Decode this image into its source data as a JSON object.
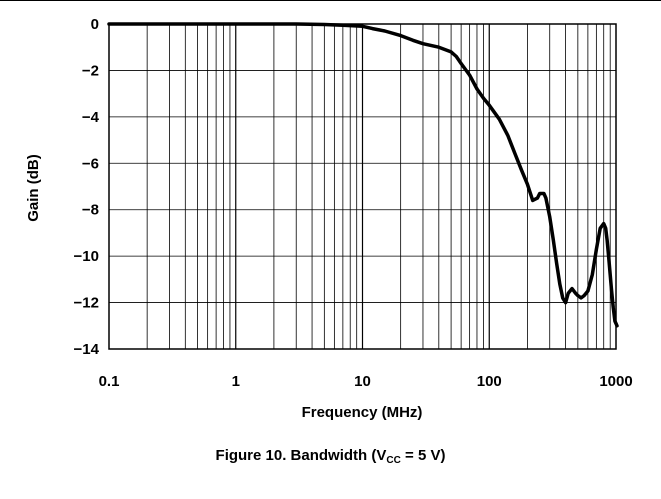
{
  "chart_data": {
    "type": "line",
    "x_scale": "log",
    "xlim": [
      0.1,
      1000
    ],
    "ylim": [
      -14,
      0
    ],
    "xlabel": "Frequency (MHz)",
    "ylabel": "Gain (dB)",
    "x_tick_labels": [
      "0.1",
      "1",
      "10",
      "100",
      "1000"
    ],
    "y_ticks": [
      0,
      -2,
      -4,
      -6,
      -8,
      -10,
      -12,
      -14
    ],
    "y_tick_labels": [
      "0",
      "−2",
      "−4",
      "−6",
      "−8",
      "−10",
      "−12",
      "−14"
    ],
    "grid": true,
    "line_color": "#000000",
    "series": [
      {
        "x": [
          0.1,
          0.5,
          1,
          2,
          3,
          5,
          7,
          10,
          12,
          15,
          20,
          25,
          30,
          40,
          50,
          55,
          60,
          70,
          80,
          90,
          100,
          120,
          140,
          160,
          180,
          200,
          220,
          240,
          250,
          270,
          280,
          300,
          320,
          340,
          360,
          380,
          400,
          420,
          450,
          480,
          500,
          530,
          560,
          600,
          650,
          700,
          750,
          800,
          830,
          850,
          880,
          900,
          920,
          950,
          980,
          1000,
          1050
        ],
        "y": [
          0,
          0,
          0,
          0,
          0,
          -0.02,
          -0.05,
          -0.1,
          -0.2,
          -0.3,
          -0.5,
          -0.7,
          -0.85,
          -1.0,
          -1.2,
          -1.4,
          -1.7,
          -2.2,
          -2.8,
          -3.2,
          -3.5,
          -4.1,
          -4.8,
          -5.6,
          -6.3,
          -6.9,
          -7.6,
          -7.5,
          -7.3,
          -7.3,
          -7.5,
          -8.3,
          -9.3,
          -10.3,
          -11.2,
          -11.8,
          -12.0,
          -11.6,
          -11.4,
          -11.6,
          -11.7,
          -11.8,
          -11.7,
          -11.5,
          -10.8,
          -9.7,
          -8.8,
          -8.6,
          -8.8,
          -9.3,
          -10.2,
          -10.8,
          -11.4,
          -12.2,
          -12.8,
          -12.9,
          -13.0
        ]
      }
    ]
  },
  "caption": {
    "prefix": "Figure 10. Bandwidth (V",
    "subscript": "CC",
    "suffix": " = 5 V)"
  }
}
